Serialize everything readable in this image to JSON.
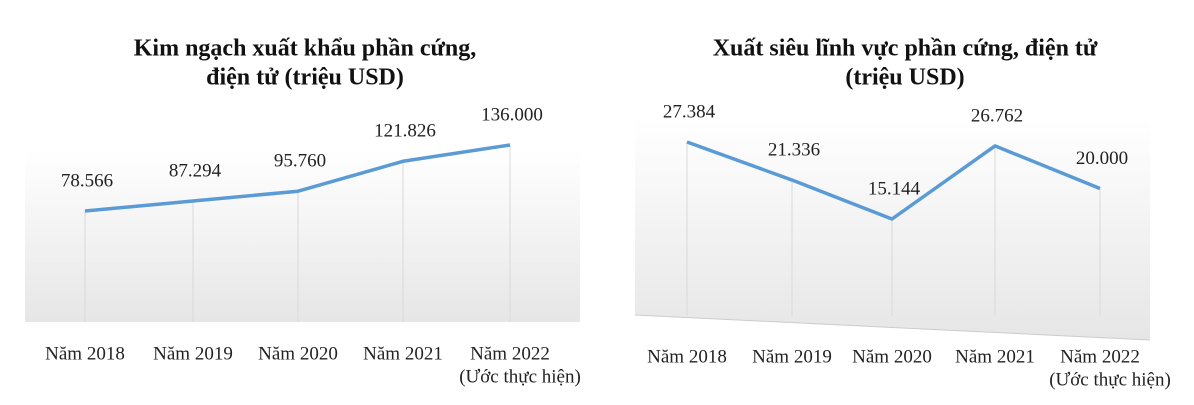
{
  "chart_data": [
    {
      "type": "line",
      "title_lines": [
        "Kim ngạch xuất khẩu phần cứng,",
        "điện tử (triệu USD)"
      ],
      "categories": [
        "Năm 2018",
        "Năm 2019",
        "Năm 2020",
        "Năm 2021",
        "Năm 2022"
      ],
      "x_note": "(Ước thực hiện)",
      "values": [
        78566,
        87294,
        95760,
        121826,
        136000
      ],
      "value_labels": [
        "78.566",
        "87.294",
        "95.760",
        "121.826",
        "136.000"
      ],
      "color": "#5b9bd5"
    },
    {
      "type": "line",
      "title_lines": [
        "Xuất siêu lĩnh vực phần cứng, điện tử",
        "(triệu USD)"
      ],
      "categories": [
        "Năm 2018",
        "Năm 2019",
        "Năm 2020",
        "Năm 2021",
        "Năm 2022"
      ],
      "x_note": "(Ước thực hiện)",
      "values": [
        27384,
        21336,
        15144,
        26762,
        20000
      ],
      "value_labels": [
        "27.384",
        "21.336",
        "15.144",
        "26.762",
        "20.000"
      ],
      "color": "#5b9bd5"
    }
  ]
}
